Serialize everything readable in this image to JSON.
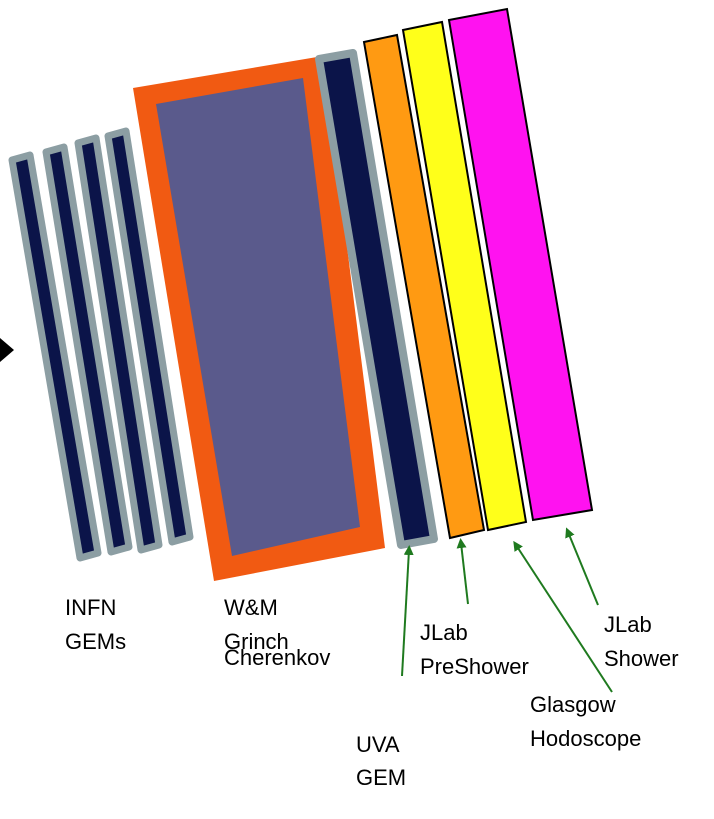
{
  "labels": {
    "infn": [
      "INFN",
      "GEMs"
    ],
    "wm": [
      "W&M",
      "Grinch",
      "Cherenkov"
    ],
    "uva": [
      "UVA",
      "GEM"
    ],
    "jlab_pre": [
      "JLab",
      "PreShower"
    ],
    "glasgow": [
      "Glasgow",
      "Hodoscope"
    ],
    "jlab_shower": [
      "JLab",
      "Shower"
    ]
  },
  "colors": {
    "gem_fill": "#0b1449",
    "gem_border": "#8c9ea3",
    "cherenkov_frame": "#f15a12",
    "cherenkov_fill": "#5a5a8c",
    "preshower": "#ff9a12",
    "hodoscope": "#ffff1a",
    "shower": "#ff12f0",
    "arrow": "#1f7a1f",
    "outline": "#000000"
  }
}
